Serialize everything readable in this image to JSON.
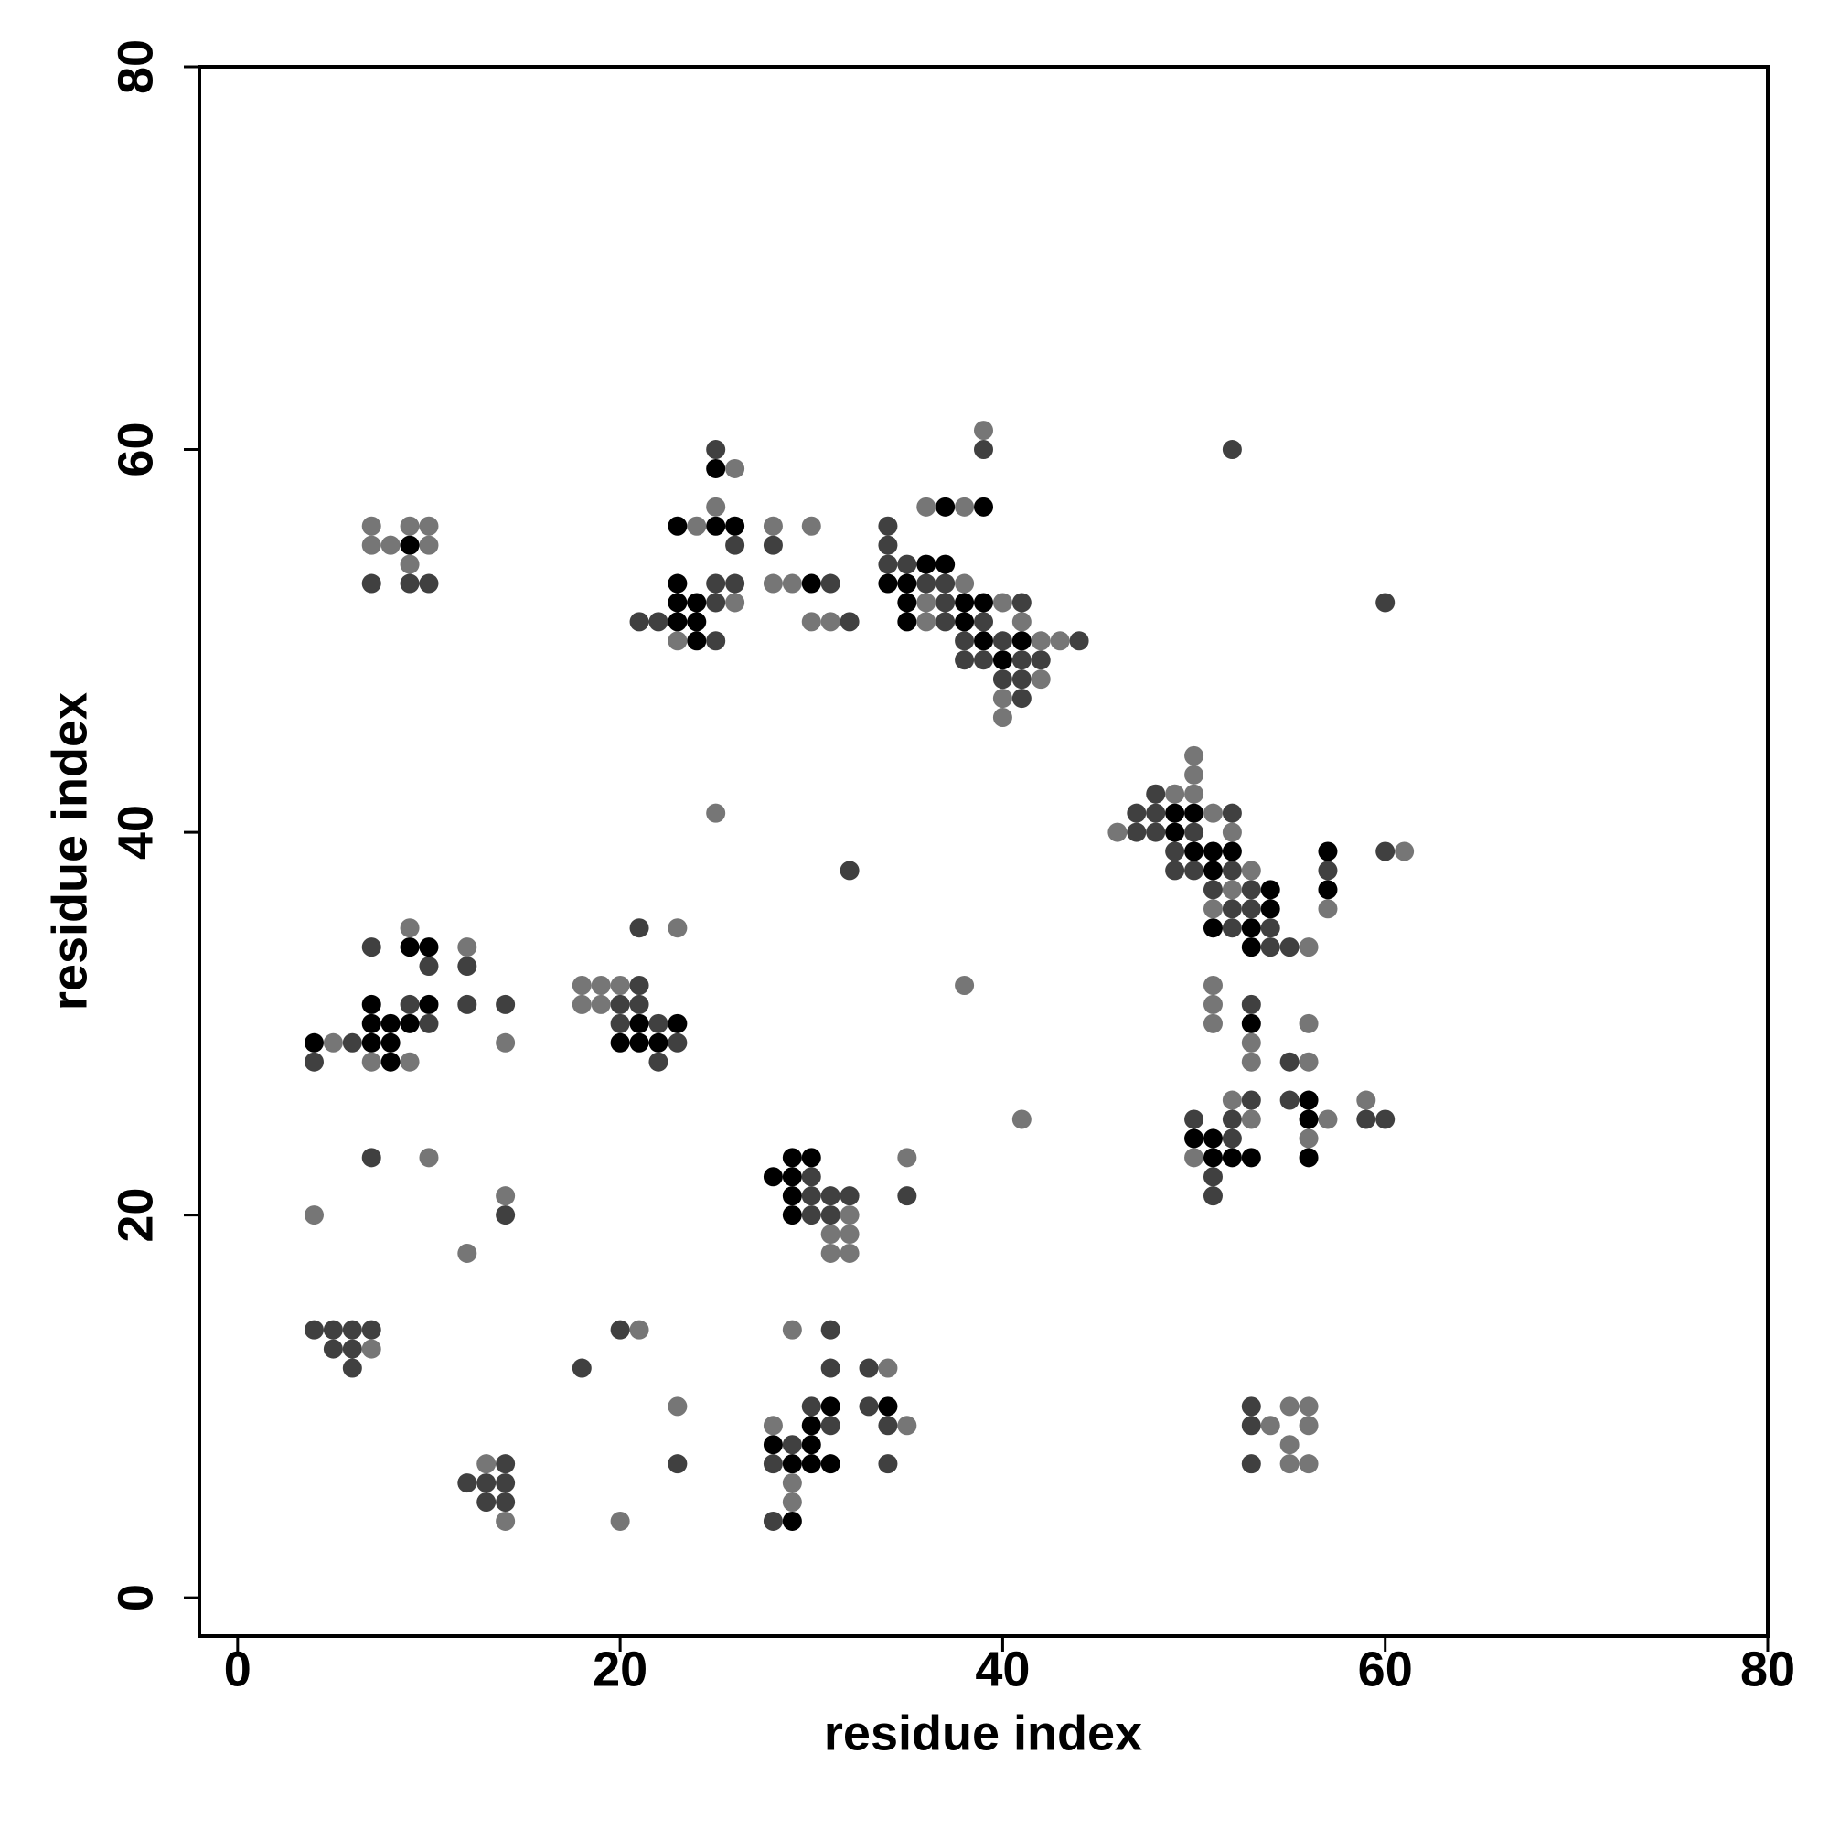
{
  "chart_data": {
    "type": "scatter",
    "x_label": "residue index",
    "y_label": "residue index",
    "xlim": [
      -2,
      80
    ],
    "ylim": [
      -2,
      80
    ],
    "xticks": [
      0,
      20,
      40,
      60,
      80
    ],
    "yticks": [
      0,
      20,
      40,
      60,
      80
    ],
    "grid": false,
    "series": [
      {
        "color": "#000000",
        "x": [
          9,
          25,
          23,
          25,
          26,
          23,
          23,
          24,
          23,
          24,
          24,
          30,
          37,
          39,
          36,
          37,
          34,
          35,
          35,
          38,
          39,
          35,
          38,
          39,
          41,
          40,
          49,
          50,
          49,
          50,
          51,
          52,
          51,
          54,
          54,
          51,
          53,
          53,
          57,
          57,
          9,
          10,
          7,
          10,
          7,
          8,
          9,
          4,
          7,
          8,
          8,
          21,
          23,
          20,
          21,
          22,
          53,
          56,
          56,
          50,
          51,
          51,
          52,
          53,
          56,
          29,
          30,
          28,
          29,
          29,
          29,
          31,
          34,
          30,
          28,
          30,
          29,
          30,
          31,
          29
        ],
        "y": [
          55,
          59,
          56,
          56,
          56,
          53,
          52,
          52,
          51,
          51,
          50,
          53,
          57,
          57,
          54,
          54,
          53,
          53,
          52,
          52,
          52,
          51,
          51,
          50,
          50,
          49,
          41,
          41,
          40,
          39,
          39,
          39,
          38,
          37,
          36,
          35,
          35,
          34,
          39,
          37,
          34,
          34,
          31,
          31,
          30,
          30,
          30,
          29,
          29,
          29,
          28,
          30,
          30,
          29,
          29,
          29,
          30,
          26,
          25,
          24,
          24,
          23,
          23,
          23,
          23,
          23,
          23,
          22,
          22,
          21,
          20,
          10,
          10,
          9,
          8,
          8,
          7,
          7,
          7,
          4
        ]
      },
      {
        "color": "#404040",
        "x": [
          7,
          9,
          10,
          25,
          26,
          25,
          26,
          25,
          21,
          22,
          25,
          28,
          31,
          32,
          39,
          34,
          34,
          34,
          35,
          36,
          37,
          37,
          41,
          37,
          39,
          38,
          40,
          44,
          38,
          39,
          41,
          42,
          40,
          41,
          41,
          52,
          60,
          32,
          48,
          47,
          48,
          52,
          47,
          48,
          50,
          49,
          49,
          50,
          52,
          51,
          53,
          52,
          53,
          52,
          54,
          54,
          55,
          57,
          60,
          7,
          10,
          12,
          9,
          12,
          14,
          10,
          6,
          4,
          21,
          21,
          20,
          21,
          20,
          22,
          23,
          22,
          53,
          55,
          53,
          55,
          50,
          52,
          59,
          60,
          52,
          51,
          51,
          7,
          14,
          30,
          30,
          31,
          32,
          30,
          31,
          35,
          4,
          5,
          6,
          7,
          5,
          6,
          6,
          18,
          20,
          23,
          14,
          12,
          13,
          14,
          13,
          14,
          31,
          31,
          33,
          30,
          33,
          31,
          34,
          29,
          28,
          34,
          28,
          53,
          53,
          53
        ],
        "y": [
          53,
          53,
          53,
          60,
          55,
          53,
          53,
          52,
          51,
          51,
          50,
          55,
          53,
          51,
          60,
          56,
          55,
          54,
          54,
          53,
          53,
          52,
          52,
          51,
          51,
          50,
          50,
          50,
          49,
          49,
          49,
          49,
          48,
          48,
          47,
          60,
          52,
          38,
          42,
          41,
          41,
          41,
          40,
          40,
          40,
          39,
          38,
          38,
          38,
          37,
          37,
          36,
          36,
          35,
          35,
          34,
          34,
          38,
          39,
          34,
          33,
          33,
          31,
          31,
          31,
          30,
          29,
          28,
          35,
          32,
          31,
          31,
          30,
          30,
          29,
          28,
          31,
          28,
          26,
          26,
          25,
          25,
          25,
          25,
          24,
          22,
          21,
          23,
          20,
          22,
          21,
          21,
          21,
          20,
          20,
          21,
          14,
          14,
          14,
          14,
          13,
          13,
          12,
          12,
          14,
          7,
          7,
          6,
          6,
          6,
          5,
          5,
          14,
          12,
          12,
          10,
          10,
          9,
          9,
          8,
          7,
          7,
          4,
          10,
          9,
          7
        ]
      },
      {
        "color": "#767676",
        "x": [
          7,
          7,
          8,
          9,
          10,
          10,
          9,
          26,
          25,
          24,
          26,
          23,
          28,
          30,
          28,
          29,
          30,
          31,
          39,
          36,
          38,
          38,
          36,
          40,
          36,
          41,
          42,
          43,
          42,
          40,
          40,
          25,
          50,
          50,
          49,
          50,
          51,
          46,
          52,
          53,
          52,
          51,
          56,
          57,
          61,
          9,
          12,
          5,
          14,
          7,
          9,
          23,
          18,
          19,
          20,
          18,
          19,
          38,
          41,
          51,
          51,
          51,
          53,
          53,
          56,
          56,
          52,
          59,
          53,
          57,
          56,
          50,
          10,
          4,
          14,
          12,
          32,
          31,
          32,
          31,
          32,
          35,
          7,
          21,
          23,
          20,
          13,
          14,
          29,
          34,
          28,
          35,
          29,
          29,
          55,
          56,
          54,
          56,
          55,
          55,
          56
        ],
        "y": [
          56,
          55,
          55,
          56,
          56,
          55,
          54,
          59,
          57,
          56,
          52,
          50,
          56,
          56,
          53,
          53,
          51,
          51,
          61,
          57,
          57,
          53,
          52,
          52,
          51,
          51,
          50,
          50,
          48,
          47,
          46,
          41,
          44,
          43,
          42,
          42,
          41,
          40,
          40,
          38,
          37,
          36,
          34,
          36,
          39,
          35,
          34,
          29,
          29,
          28,
          28,
          35,
          32,
          32,
          32,
          31,
          31,
          32,
          25,
          32,
          31,
          30,
          29,
          28,
          28,
          30,
          26,
          26,
          25,
          25,
          24,
          23,
          23,
          20,
          21,
          18,
          20,
          19,
          19,
          18,
          18,
          23,
          13,
          14,
          10,
          4,
          7,
          4,
          14,
          12,
          9,
          9,
          6,
          5,
          10,
          10,
          9,
          9,
          8,
          7,
          7
        ]
      }
    ]
  }
}
